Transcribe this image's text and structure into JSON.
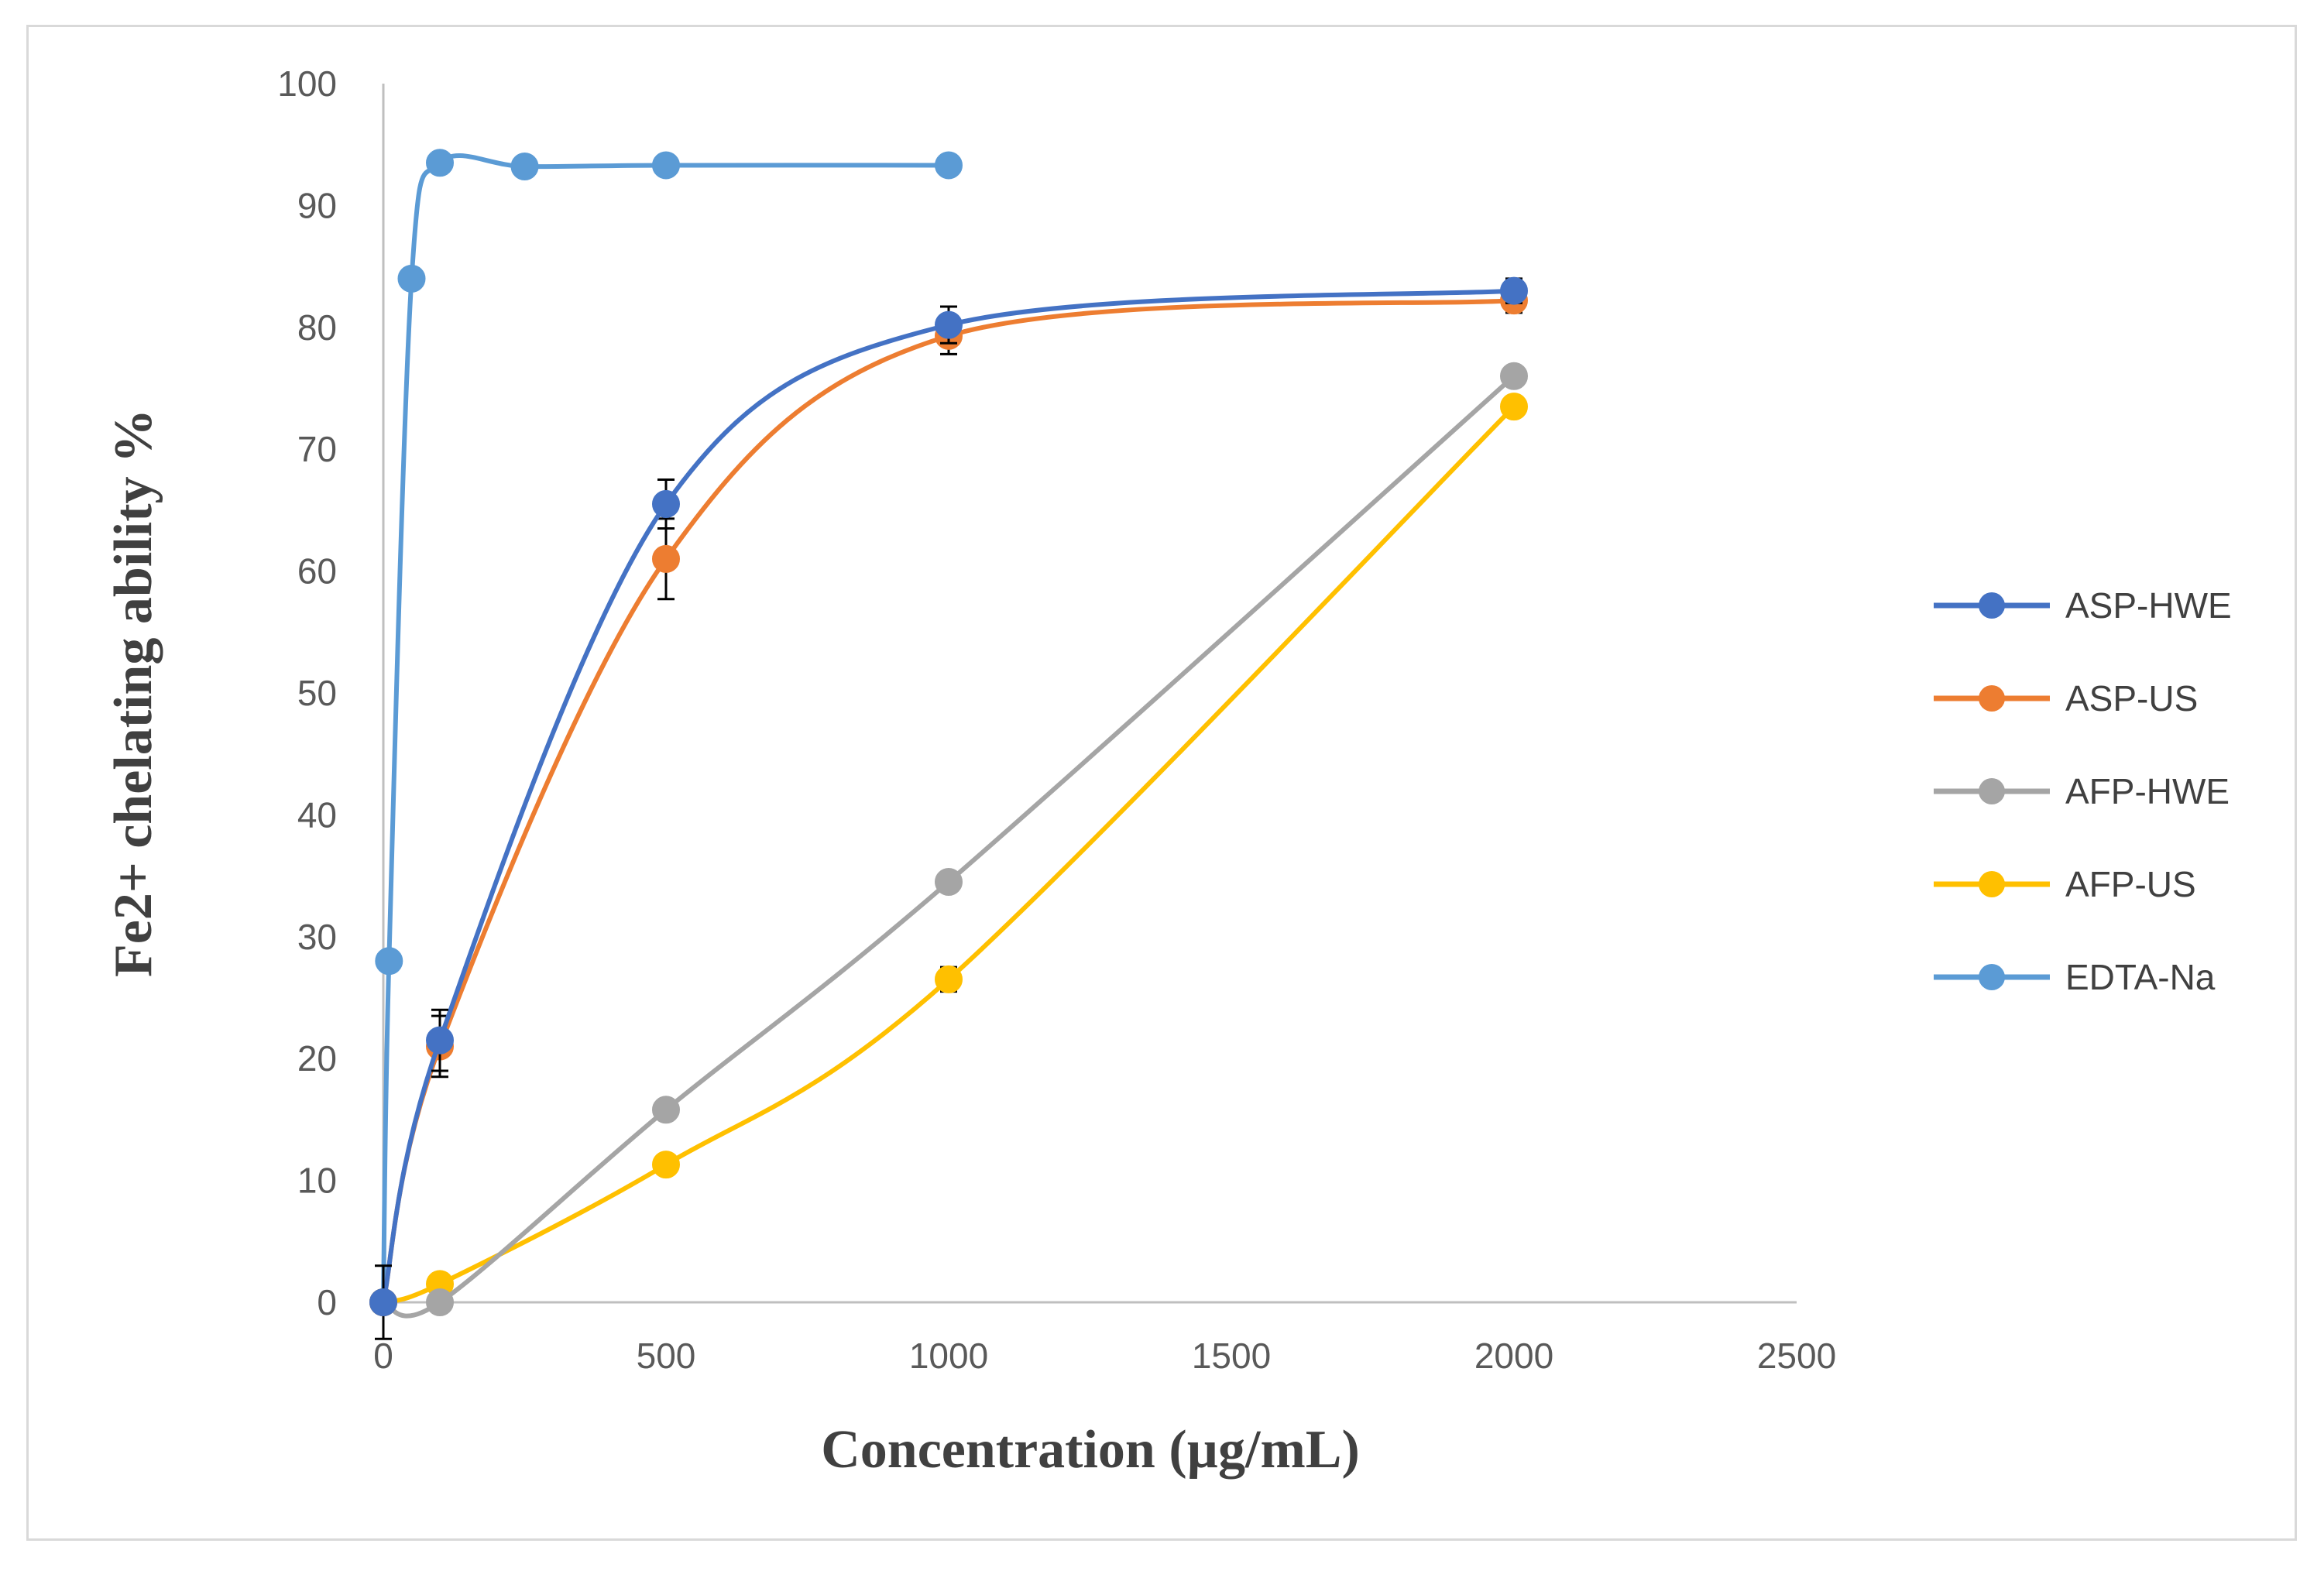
{
  "chart_data": {
    "type": "line",
    "title": "",
    "xlabel": "Concentration (µg/mL)",
    "ylabel": "Fe2+ chelating ability %",
    "xlim": [
      0,
      2500
    ],
    "ylim": [
      0,
      100
    ],
    "x_ticks": [
      "0",
      "500",
      "1000",
      "1500",
      "2000",
      "2500"
    ],
    "y_ticks": [
      "0",
      "10",
      "20",
      "30",
      "40",
      "50",
      "60",
      "70",
      "80",
      "90",
      "100"
    ],
    "grid": false,
    "legend_position": "right",
    "series": [
      {
        "name": "ASP-HWE",
        "color": "#4472c4",
        "x": [
          0,
          100,
          500,
          1000,
          2000
        ],
        "y": [
          0,
          21.5,
          65.5,
          80.2,
          83
        ],
        "err": [
          3,
          2.5,
          2,
          1.5,
          1
        ]
      },
      {
        "name": "ASP-US",
        "color": "#ed7d31",
        "x": [
          0,
          100,
          500,
          1000,
          2000
        ],
        "y": [
          0,
          21,
          61,
          79.3,
          82.2
        ],
        "err": [
          0,
          2.5,
          3.3,
          1.5,
          1
        ]
      },
      {
        "name": "AFP-HWE",
        "color": "#a5a5a5",
        "x": [
          0,
          100,
          500,
          1000,
          2000
        ],
        "y": [
          0,
          0,
          15.8,
          34.5,
          76
        ],
        "err": [
          0,
          0,
          0,
          0,
          0
        ]
      },
      {
        "name": "AFP-US",
        "color": "#ffc000",
        "x": [
          0,
          100,
          500,
          1000,
          2000
        ],
        "y": [
          0,
          1.5,
          11.3,
          26.5,
          73.5
        ],
        "err": [
          0,
          0,
          0,
          1,
          0
        ]
      },
      {
        "name": "EDTA-Na",
        "color": "#5b9bd5",
        "x": [
          0,
          10,
          50,
          100,
          250,
          500,
          1000
        ],
        "y": [
          0,
          28,
          84,
          93.5,
          93.2,
          93.3,
          93.3
        ],
        "err": [
          0,
          0,
          0,
          0,
          0,
          0,
          0
        ]
      }
    ]
  }
}
